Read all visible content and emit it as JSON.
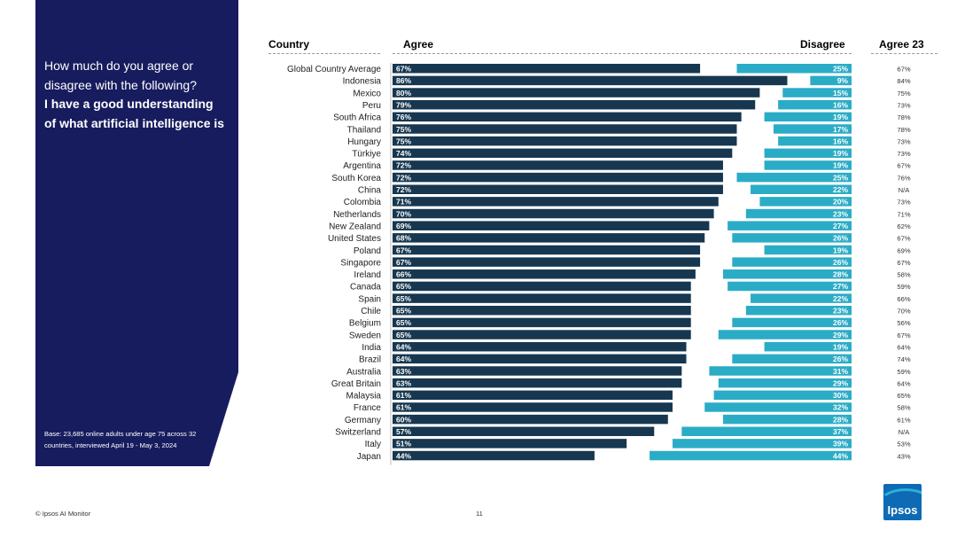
{
  "question": {
    "line1": "How much do you agree or disagree with the following?",
    "line2": "I have a good understanding of what artificial intelligence is"
  },
  "base_note": "Base: 23,685 online adults under age 75 across 32 countries, interviewed April 19 - May 3, 2024",
  "headers": {
    "country": "Country",
    "agree": "Agree",
    "disagree": "Disagree",
    "agree23": "Agree 23"
  },
  "footer": {
    "source": "© Ipsos AI Monitor",
    "page": "11",
    "logo": "Ipsos"
  },
  "colors": {
    "agree": "#16374f",
    "disagree": "#2bacc6",
    "panel": "#171c5e"
  },
  "chart_data": {
    "type": "bar",
    "orientation": "horizontal-diverging",
    "series_names": [
      "Agree",
      "Disagree",
      "Agree 23"
    ],
    "categories": [
      "Global Country Average",
      "Indonesia",
      "Mexico",
      "Peru",
      "South Africa",
      "Thailand",
      "Hungary",
      "Türkiye",
      "Argentina",
      "South Korea",
      "China",
      "Colombia",
      "Netherlands",
      "New Zealand",
      "United States",
      "Poland",
      "Singapore",
      "Ireland",
      "Canada",
      "Spain",
      "Chile",
      "Belgium",
      "Sweden",
      "India",
      "Brazil",
      "Australia",
      "Great Britain",
      "Malaysia",
      "France",
      "Germany",
      "Switzerland",
      "Italy",
      "Japan"
    ],
    "agree": [
      67,
      86,
      80,
      79,
      76,
      75,
      75,
      74,
      72,
      72,
      72,
      71,
      70,
      69,
      68,
      67,
      67,
      66,
      65,
      65,
      65,
      65,
      65,
      64,
      64,
      63,
      63,
      61,
      61,
      60,
      57,
      51,
      44
    ],
    "disagree": [
      25,
      9,
      15,
      16,
      19,
      17,
      16,
      19,
      19,
      25,
      22,
      20,
      23,
      27,
      26,
      19,
      26,
      28,
      27,
      22,
      23,
      26,
      29,
      19,
      26,
      31,
      29,
      30,
      32,
      28,
      37,
      39,
      44
    ],
    "agree23": [
      "67%",
      "84%",
      "75%",
      "73%",
      "78%",
      "78%",
      "73%",
      "73%",
      "67%",
      "76%",
      "N/A",
      "73%",
      "71%",
      "62%",
      "67%",
      "69%",
      "67%",
      "58%",
      "59%",
      "66%",
      "70%",
      "56%",
      "67%",
      "64%",
      "74%",
      "59%",
      "64%",
      "65%",
      "58%",
      "61%",
      "N/A",
      "53%",
      "43%"
    ],
    "xlim": [
      0,
      100
    ]
  }
}
